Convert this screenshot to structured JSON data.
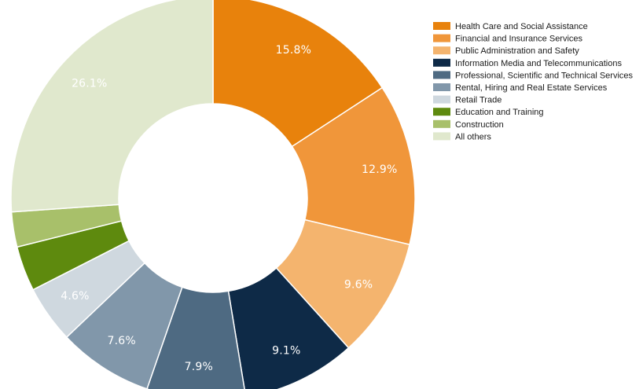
{
  "chart_data": {
    "type": "pie",
    "donut": true,
    "legend_position": "top-right",
    "series": [
      {
        "name": "Health Care and Social Assistance",
        "value": 15.8,
        "label": "15.8%",
        "color": "#E8820C"
      },
      {
        "name": "Financial and Insurance Services",
        "value": 12.9,
        "label": "12.9%",
        "color": "#F0963A"
      },
      {
        "name": "Public Administration and Safety",
        "value": 9.6,
        "label": "9.6%",
        "color": "#F4B46E"
      },
      {
        "name": "Information Media and Telecommunications",
        "value": 9.1,
        "label": "9.1%",
        "color": "#0E2A47"
      },
      {
        "name": "Professional, Scientific and Technical Services",
        "value": 7.9,
        "label": "7.9%",
        "color": "#4E6A82"
      },
      {
        "name": "Rental, Hiring and Real Estate Services",
        "value": 7.6,
        "label": "7.6%",
        "color": "#8197AA"
      },
      {
        "name": "Retail Trade",
        "value": 4.6,
        "label": "4.6%",
        "color": "#CFD8DF"
      },
      {
        "name": "Education and Training",
        "value": 3.6,
        "label": "",
        "color": "#5E8A0E"
      },
      {
        "name": "Construction",
        "value": 2.8,
        "label": "",
        "color": "#A8C06A"
      },
      {
        "name": "All others",
        "value": 26.1,
        "label": "26.1%",
        "color": "#E0E8CD"
      }
    ]
  }
}
